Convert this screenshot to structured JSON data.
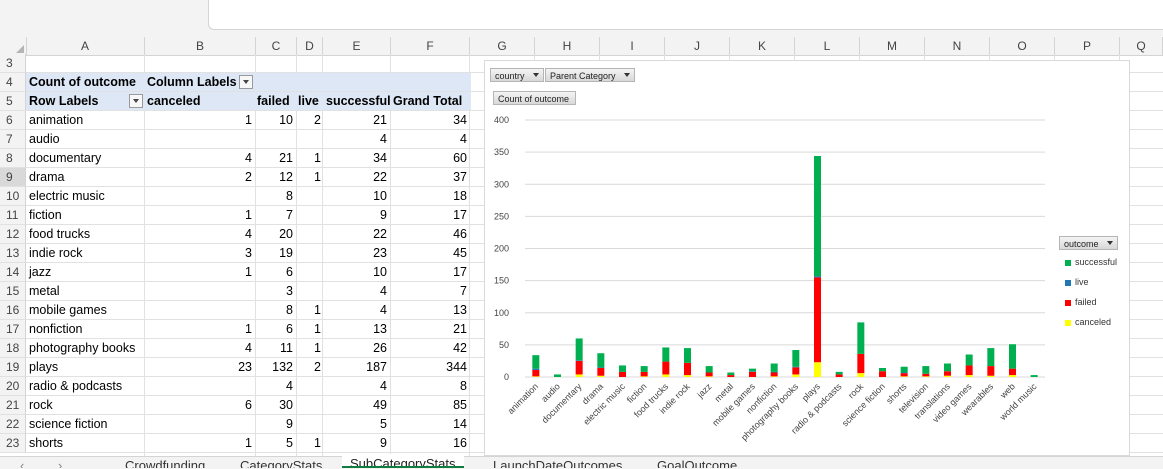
{
  "columns": [
    "A",
    "B",
    "C",
    "D",
    "E",
    "F",
    "G",
    "H",
    "I",
    "J",
    "K",
    "L",
    "M",
    "N",
    "O",
    "P",
    "Q"
  ],
  "row_numbers": [
    "3",
    "4",
    "5",
    "6",
    "7",
    "8",
    "9",
    "10",
    "11",
    "12",
    "13",
    "14",
    "15",
    "16",
    "17",
    "18",
    "19",
    "20",
    "21",
    "22",
    "23"
  ],
  "pivot": {
    "header_row4": {
      "a": "Count of outcome",
      "b": "Column Labels"
    },
    "header_row5": {
      "a": "Row Labels",
      "b": "canceled",
      "c": "failed",
      "d": "live",
      "e": "successful",
      "f": "Grand Total"
    },
    "rows": [
      {
        "label": "animation",
        "canceled": "1",
        "failed": "10",
        "live": "2",
        "successful": "21",
        "total": "34"
      },
      {
        "label": "audio",
        "canceled": "",
        "failed": "",
        "live": "",
        "successful": "4",
        "total": "4"
      },
      {
        "label": "documentary",
        "canceled": "4",
        "failed": "21",
        "live": "1",
        "successful": "34",
        "total": "60"
      },
      {
        "label": "drama",
        "canceled": "2",
        "failed": "12",
        "live": "1",
        "successful": "22",
        "total": "37"
      },
      {
        "label": "electric music",
        "canceled": "",
        "failed": "8",
        "live": "",
        "successful": "10",
        "total": "18"
      },
      {
        "label": "fiction",
        "canceled": "1",
        "failed": "7",
        "live": "",
        "successful": "9",
        "total": "17"
      },
      {
        "label": "food trucks",
        "canceled": "4",
        "failed": "20",
        "live": "",
        "successful": "22",
        "total": "46"
      },
      {
        "label": "indie rock",
        "canceled": "3",
        "failed": "19",
        "live": "",
        "successful": "23",
        "total": "45"
      },
      {
        "label": "jazz",
        "canceled": "1",
        "failed": "6",
        "live": "",
        "successful": "10",
        "total": "17"
      },
      {
        "label": "metal",
        "canceled": "",
        "failed": "3",
        "live": "",
        "successful": "4",
        "total": "7"
      },
      {
        "label": "mobile games",
        "canceled": "",
        "failed": "8",
        "live": "1",
        "successful": "4",
        "total": "13"
      },
      {
        "label": "nonfiction",
        "canceled": "1",
        "failed": "6",
        "live": "1",
        "successful": "13",
        "total": "21"
      },
      {
        "label": "photography books",
        "canceled": "4",
        "failed": "11",
        "live": "1",
        "successful": "26",
        "total": "42"
      },
      {
        "label": "plays",
        "canceled": "23",
        "failed": "132",
        "live": "2",
        "successful": "187",
        "total": "344"
      },
      {
        "label": "radio & podcasts",
        "canceled": "",
        "failed": "4",
        "live": "",
        "successful": "4",
        "total": "8"
      },
      {
        "label": "rock",
        "canceled": "6",
        "failed": "30",
        "live": "",
        "successful": "49",
        "total": "85"
      },
      {
        "label": "science fiction",
        "canceled": "",
        "failed": "9",
        "live": "",
        "successful": "5",
        "total": "14"
      },
      {
        "label": "shorts",
        "canceled": "1",
        "failed": "5",
        "live": "1",
        "successful": "9",
        "total": "16"
      }
    ]
  },
  "chart_buttons": {
    "country": "country",
    "parent_category": "Parent Category",
    "count": "Count of outcome",
    "outcome": "outcome"
  },
  "chart_data": {
    "type": "bar",
    "stacked": true,
    "categories": [
      "animation",
      "audio",
      "documentary",
      "drama",
      "electric music",
      "fiction",
      "food trucks",
      "indie rock",
      "jazz",
      "metal",
      "mobile games",
      "nonfiction",
      "photography books",
      "plays",
      "radio & podcasts",
      "rock",
      "science fiction",
      "shorts",
      "television",
      "translations",
      "video games",
      "wearables",
      "web",
      "world music"
    ],
    "series": [
      {
        "name": "canceled",
        "color": "#ffff00",
        "values": [
          1,
          0,
          4,
          2,
          0,
          1,
          4,
          3,
          1,
          0,
          0,
          1,
          4,
          23,
          0,
          6,
          0,
          1,
          1,
          2,
          3,
          2,
          3,
          0
        ]
      },
      {
        "name": "failed",
        "color": "#ff0000",
        "values": [
          10,
          0,
          21,
          12,
          8,
          7,
          20,
          19,
          6,
          3,
          8,
          6,
          11,
          132,
          4,
          30,
          9,
          5,
          4,
          7,
          15,
          15,
          10,
          0
        ]
      },
      {
        "name": "live",
        "color": "#1f77b4",
        "values": [
          2,
          0,
          1,
          1,
          0,
          0,
          0,
          0,
          0,
          0,
          1,
          1,
          1,
          2,
          0,
          0,
          0,
          1,
          0,
          0,
          0,
          0,
          0,
          0
        ]
      },
      {
        "name": "successful",
        "color": "#00b050",
        "values": [
          21,
          4,
          34,
          22,
          10,
          9,
          22,
          23,
          10,
          4,
          4,
          13,
          26,
          187,
          4,
          49,
          5,
          9,
          12,
          12,
          17,
          28,
          38,
          3
        ]
      }
    ],
    "ylim": [
      0,
      400
    ],
    "yticks": [
      "0",
      "50",
      "100",
      "150",
      "200",
      "250",
      "300",
      "350",
      "400"
    ],
    "legend_order": [
      "successful",
      "live",
      "failed",
      "canceled"
    ],
    "legend_position": "right"
  },
  "tabs": [
    "Crowdfunding",
    "CategoryStats",
    "SubCategoryStats",
    "LaunchDateOutcomes",
    "GoalOutcome"
  ],
  "active_tab": "SubCategoryStats"
}
